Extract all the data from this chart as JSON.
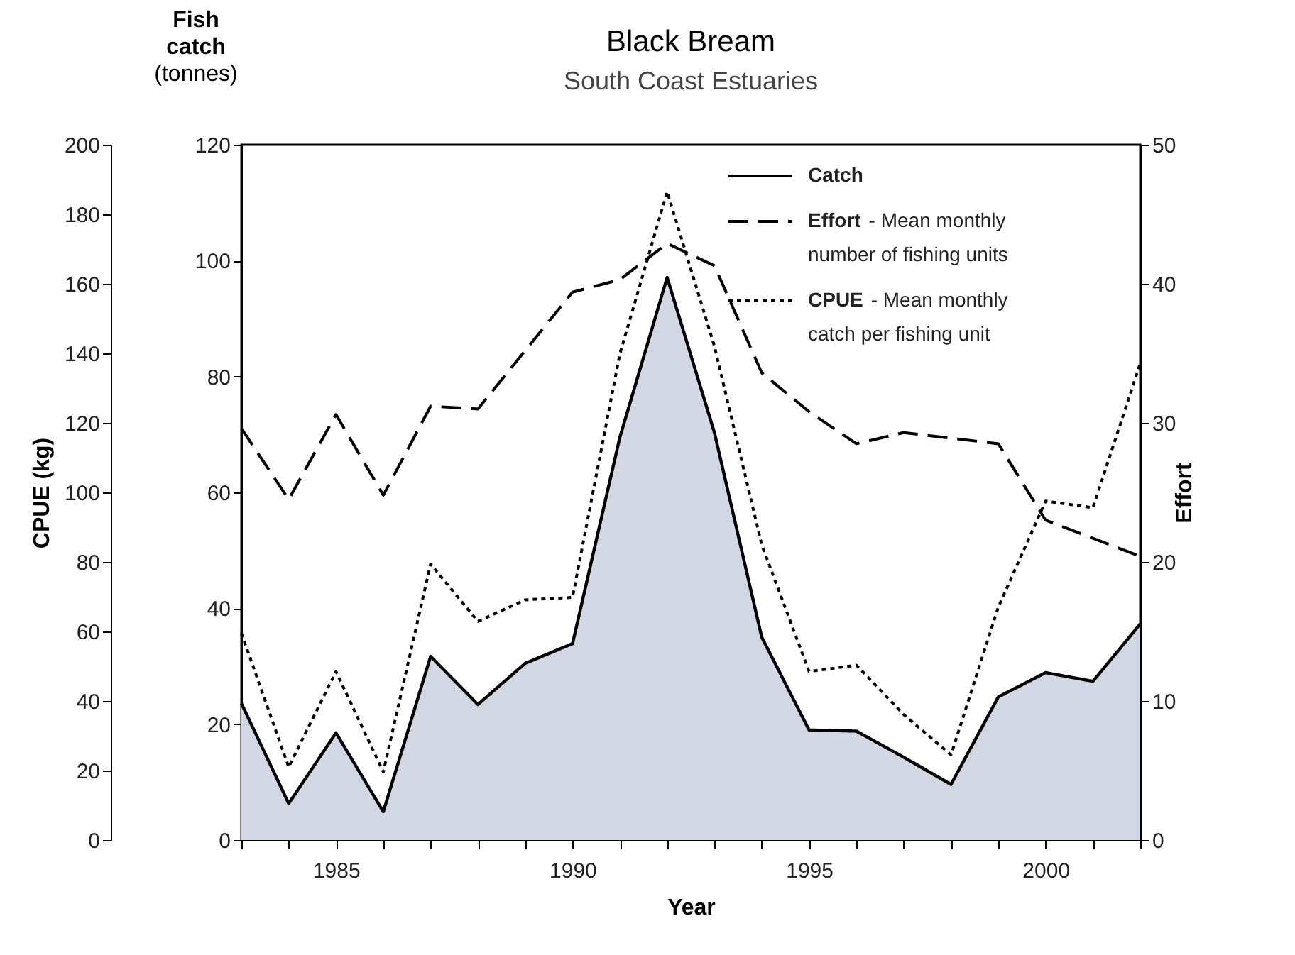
{
  "chart_data": {
    "type": "line",
    "title": "Black Bream",
    "subtitle": "South Coast Estuaries",
    "xlabel": "Year",
    "ylabel": "Fish catch (tonnes)",
    "y2label": "Effort",
    "y3label": "CPUE (kg)",
    "x": [
      1983,
      1984,
      1985,
      1986,
      1987,
      1988,
      1989,
      1990,
      1991,
      1992,
      1993,
      1994,
      1995,
      1996,
      1997,
      1998,
      1999,
      2000,
      2001,
      2002
    ],
    "xlim": [
      1983,
      2002
    ],
    "xticks": [
      {
        "value": 1983,
        "label": null
      },
      {
        "value": 1984,
        "label": null
      },
      1985,
      {
        "value": 1986,
        "label": null
      },
      {
        "value": 1987,
        "label": null
      },
      {
        "value": 1988,
        "label": null
      },
      {
        "value": 1989,
        "label": null
      },
      1990,
      {
        "value": 1991,
        "label": null
      },
      {
        "value": 1992,
        "label": null
      },
      {
        "value": 1993,
        "label": null
      },
      {
        "value": 1994,
        "label": null
      },
      1995,
      {
        "value": 1996,
        "label": null
      },
      {
        "value": 1997,
        "label": null
      },
      {
        "value": 1998,
        "label": null
      },
      {
        "value": 1999,
        "label": null
      },
      2000,
      {
        "value": 2001,
        "label": null
      },
      {
        "value": 2002,
        "label": null
      }
    ],
    "ylim": [
      0,
      120
    ],
    "yticks": [
      0,
      20,
      40,
      60,
      80,
      100,
      120
    ],
    "y2lim": [
      0,
      50
    ],
    "y2ticks": [
      0,
      10,
      20,
      30,
      40,
      50
    ],
    "y3lim": [
      0,
      200
    ],
    "y3ticks": [
      0,
      20,
      40,
      60,
      80,
      100,
      120,
      140,
      160,
      180,
      200
    ],
    "series": [
      {
        "name": "Catch",
        "type": "area",
        "color": "#d1d7e3",
        "line_style": "solid",
        "values": [
          23.6,
          6.3,
          18.5,
          4.9,
          31.7,
          23.4,
          30.5,
          33.9,
          69.5,
          97.1,
          70.3,
          35.0,
          19.0,
          18.8,
          14.3,
          9.6,
          24.7,
          28.9,
          27.4,
          37.3
        ]
      },
      {
        "name": "Effort - Mean monthly number of fishing units",
        "axis": "y2",
        "color": "#000000",
        "line_style": "dashed",
        "values": [
          29.6,
          24.5,
          30.6,
          24.8,
          31.2,
          31.0,
          35.2,
          39.4,
          40.3,
          42.9,
          41.3,
          33.6,
          30.8,
          28.5,
          29.3,
          28.9,
          28.5,
          23.0,
          21.7,
          20.4
        ]
      },
      {
        "name": "CPUE - Mean monthly catch per fishing unit",
        "axis": "y3",
        "color": "#000000",
        "line_style": "dotted",
        "values": [
          59.5,
          21.0,
          48.5,
          19.6,
          79.4,
          62.9,
          69.1,
          69.8,
          139.8,
          186.5,
          142.0,
          84.9,
          48.5,
          50.3,
          36.1,
          24.5,
          67.0,
          97.5,
          95.6,
          137.1
        ]
      }
    ],
    "legend": "top right",
    "grid": false,
    "marker": "none"
  }
}
